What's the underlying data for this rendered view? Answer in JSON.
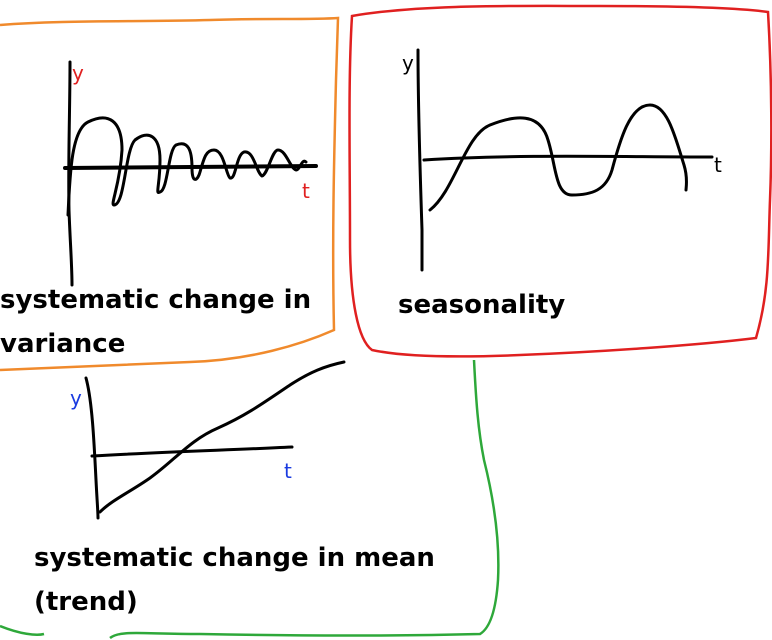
{
  "colors": {
    "variance_border": "#f08a2c",
    "seasonality_border": "#e02020",
    "trend_border": "#2ea83a",
    "variance_axis_letters": "#e02020",
    "seasonality_axis_letters": "#000000",
    "trend_axis_letters": "#1a3be0",
    "curves": "#000000"
  },
  "panels": {
    "variance": {
      "y_axis": "y",
      "t_axis": "t",
      "caption_line1": "systematic change in",
      "caption_line2": "variance"
    },
    "seasonality": {
      "y_axis": "y",
      "t_axis": "t",
      "caption": "seasonality"
    },
    "trend": {
      "y_axis": "y",
      "t_axis": "t",
      "caption_line1": "systematic change in mean",
      "caption_line2": "(trend)"
    }
  }
}
